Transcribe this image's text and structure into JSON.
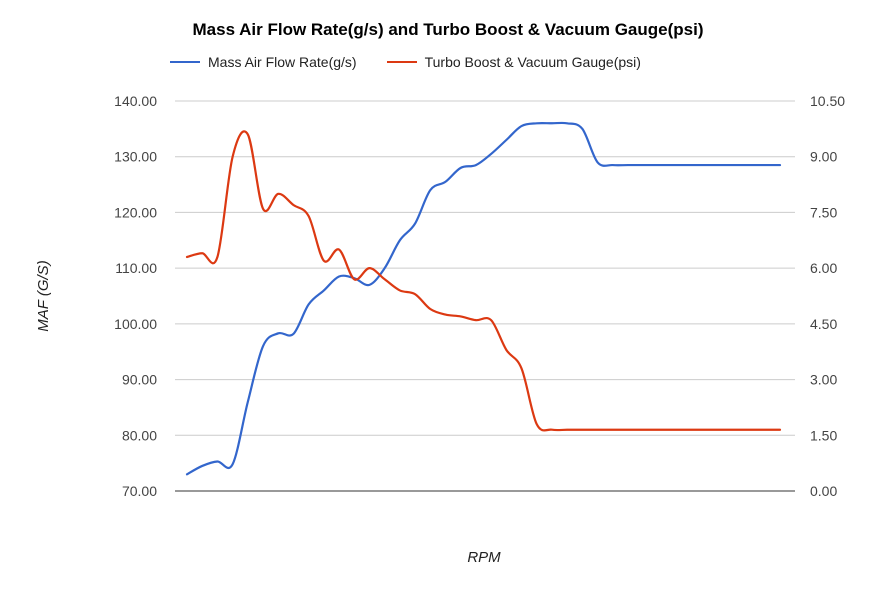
{
  "chart_data": {
    "type": "line",
    "title": "Mass Air Flow Rate(g/s) and Turbo Boost & Vacuum Gauge(psi)",
    "xlabel": "RPM",
    "ylabel": "MAF (G/S)",
    "ylabel_right": "",
    "ylim": [
      70,
      140
    ],
    "ylim_right": [
      0,
      10.5
    ],
    "yticks": [
      "70.00",
      "80.00",
      "90.00",
      "100.00",
      "110.00",
      "120.00",
      "130.00",
      "140.00"
    ],
    "yticks_right": [
      "0.00",
      "1.50",
      "3.00",
      "4.50",
      "6.00",
      "7.50",
      "9.00",
      "10.50"
    ],
    "legend_position": "top-left",
    "grid": true,
    "x": [
      1,
      2,
      3,
      4,
      5,
      6,
      7,
      8,
      9,
      10,
      11,
      12,
      13,
      14,
      15,
      16,
      17,
      18,
      19,
      20,
      21,
      22,
      23,
      24,
      25,
      26,
      27,
      28,
      29,
      30,
      31,
      32,
      33,
      34,
      35,
      36,
      37,
      38,
      39,
      40
    ],
    "series": [
      {
        "name": "Mass Air Flow Rate(g/s)",
        "axis": "left",
        "color": "#3366cc",
        "values": [
          73,
          74.5,
          75.3,
          74.8,
          86,
          96,
          98.3,
          98.2,
          103.5,
          106,
          108.5,
          108.2,
          107,
          110,
          115,
          118,
          124,
          125.5,
          128,
          128.5,
          130.5,
          133,
          135.5,
          136,
          136,
          136,
          135,
          129,
          128.5,
          128.5,
          128.5,
          128.5,
          128.5,
          128.5,
          128.5,
          128.5,
          128.5,
          128.5,
          128.5,
          128.5
        ]
      },
      {
        "name": "Turbo Boost & Vacuum Gauge(psi)",
        "axis": "right",
        "color": "#dc3912",
        "values": [
          6.3,
          6.4,
          6.3,
          9,
          9.6,
          7.6,
          8,
          7.7,
          7.4,
          6.2,
          6.5,
          5.7,
          6,
          5.7,
          5.4,
          5.3,
          4.9,
          4.75,
          4.7,
          4.6,
          4.6,
          3.8,
          3.3,
          1.8,
          1.65,
          1.65,
          1.65,
          1.65,
          1.65,
          1.65,
          1.65,
          1.65,
          1.65,
          1.65,
          1.65,
          1.65,
          1.65,
          1.65,
          1.65,
          1.65
        ]
      }
    ]
  }
}
